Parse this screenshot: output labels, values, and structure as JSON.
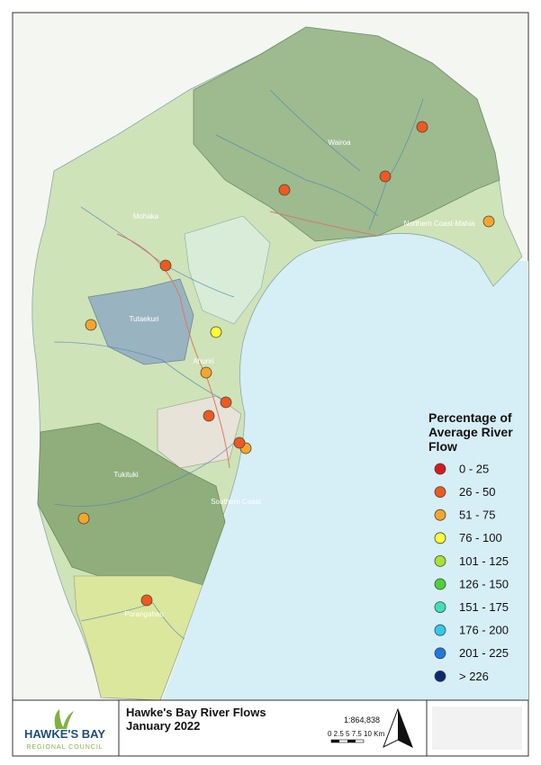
{
  "legend": {
    "title": "Percentage of Average River Flow",
    "items": [
      {
        "label": "0 - 25",
        "color": "#d7191c"
      },
      {
        "label": "26 - 50",
        "color": "#ee5a1e"
      },
      {
        "label": "51 - 75",
        "color": "#f5a52a"
      },
      {
        "label": "76 - 100",
        "color": "#ffff33"
      },
      {
        "label": "101 - 125",
        "color": "#a6e22e"
      },
      {
        "label": "126 - 150",
        "color": "#4cd137"
      },
      {
        "label": "151 - 175",
        "color": "#3fe0b8"
      },
      {
        "label": "176 - 200",
        "color": "#33c8ee"
      },
      {
        "label": "201 - 225",
        "color": "#1e78e0"
      },
      {
        "label": "> 226",
        "color": "#0b2a6e"
      }
    ]
  },
  "regions": [
    "Wairoa",
    "Northern Coast-Mahia",
    "Mohaka",
    "Tutaekuri",
    "Ahuriri",
    "Tukituki",
    "Southern Coast",
    "Porangahau"
  ],
  "footer": {
    "logo": "HAWKE'S BAY",
    "logo_sub": "REGIONAL COUNCIL",
    "title": "Hawke's Bay River Flows",
    "subtitle": "January 2022",
    "scale": "1:864,838",
    "scale_bar": "0 2.5 5 7.5 10 Km"
  }
}
